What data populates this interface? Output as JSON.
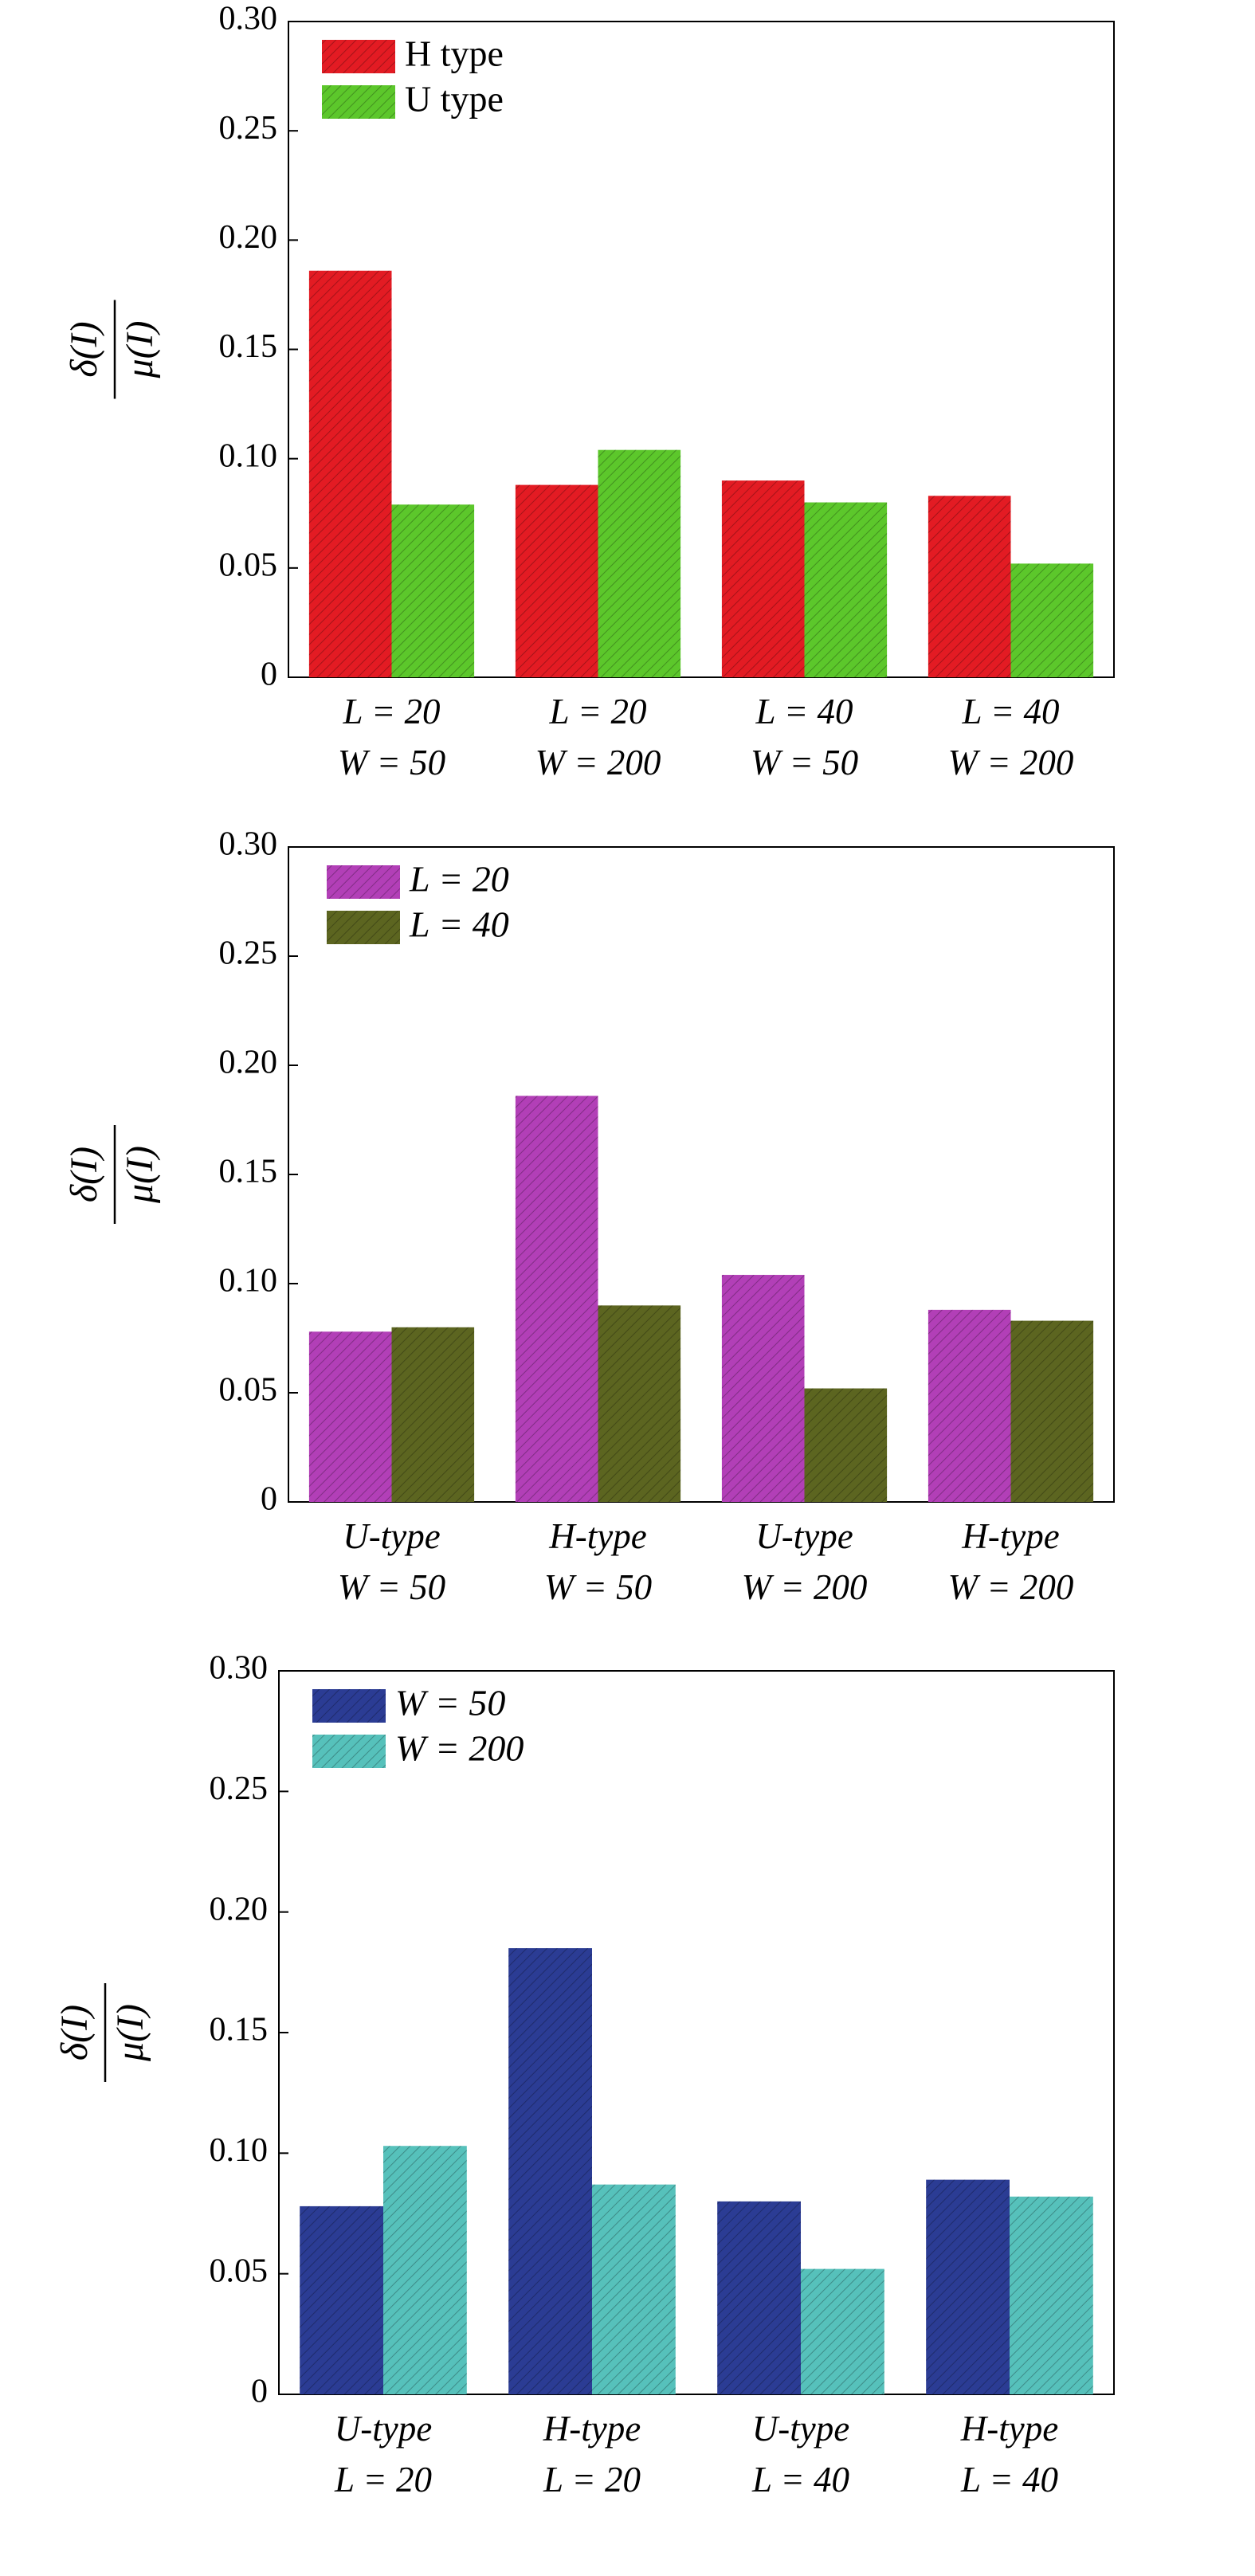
{
  "chart_data": [
    {
      "type": "bar",
      "ylabel": "δ(I) / μ(I)",
      "ylabel_num": "δ(I)",
      "ylabel_den": "μ(I)",
      "ylim": [
        0,
        0.3
      ],
      "yticks": [
        "0",
        "0.05",
        "0.10",
        "0.15",
        "0.20",
        "0.25",
        "0.30"
      ],
      "ytick_values": [
        0,
        0.05,
        0.1,
        0.15,
        0.2,
        0.25,
        0.3
      ],
      "categories": [
        [
          "L = 20",
          "W = 50"
        ],
        [
          "L = 20",
          "W = 200"
        ],
        [
          "L = 40",
          "W = 50"
        ],
        [
          "L = 40",
          "W = 200"
        ]
      ],
      "legend_position": "top-left",
      "series": [
        {
          "name": "H type",
          "color": "#e31b23",
          "values": [
            0.186,
            0.088,
            0.09,
            0.083
          ]
        },
        {
          "name": "U type",
          "color": "#5cc72b",
          "values": [
            0.079,
            0.104,
            0.08,
            0.052
          ]
        }
      ]
    },
    {
      "type": "bar",
      "ylabel": "δ(I) / μ(I)",
      "ylabel_num": "δ(I)",
      "ylabel_den": "μ(I)",
      "ylim": [
        0,
        0.3
      ],
      "yticks": [
        "0",
        "0.05",
        "0.10",
        "0.15",
        "0.20",
        "0.25",
        "0.30"
      ],
      "ytick_values": [
        0,
        0.05,
        0.1,
        0.15,
        0.2,
        0.25,
        0.3
      ],
      "categories": [
        [
          "U-type",
          "W = 50"
        ],
        [
          "H-type",
          "W = 50"
        ],
        [
          "U-type",
          "W = 200"
        ],
        [
          "H-type",
          "W = 200"
        ]
      ],
      "legend_position": "top-left",
      "series": [
        {
          "name": "L = 20",
          "color": "#b23fb7",
          "values": [
            0.078,
            0.186,
            0.104,
            0.088
          ]
        },
        {
          "name": "L = 40",
          "color": "#5c6520",
          "values": [
            0.08,
            0.09,
            0.052,
            0.083
          ]
        }
      ]
    },
    {
      "type": "bar",
      "ylabel": "δ(I) / μ(I)",
      "ylabel_num": "δ(I)",
      "ylabel_den": "μ(I)",
      "ylim": [
        0,
        0.3
      ],
      "yticks": [
        "0",
        "0.05",
        "0.10",
        "0.15",
        "0.20",
        "0.25",
        "0.30"
      ],
      "ytick_values": [
        0,
        0.05,
        0.1,
        0.15,
        0.2,
        0.25,
        0.3
      ],
      "categories": [
        [
          "U-type",
          "L = 20"
        ],
        [
          "H-type",
          "L = 20"
        ],
        [
          "U-type",
          "L = 40"
        ],
        [
          "H-type",
          "L = 40"
        ]
      ],
      "legend_position": "top-left",
      "series": [
        {
          "name": "W = 50",
          "color": "#2b3c94",
          "values": [
            0.078,
            0.185,
            0.08,
            0.089
          ]
        },
        {
          "name": "W = 200",
          "color": "#56c1bb",
          "values": [
            0.103,
            0.087,
            0.052,
            0.082
          ]
        }
      ]
    }
  ]
}
